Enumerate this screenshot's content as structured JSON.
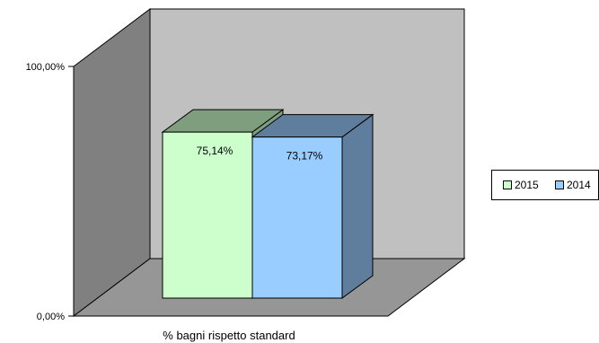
{
  "chart_data": {
    "type": "bar",
    "categories": [
      "% bagni rispetto standard"
    ],
    "series": [
      {
        "name": "2015",
        "values": [
          75.14
        ],
        "label": "75,14%",
        "color": "#ccffcc"
      },
      {
        "name": "2014",
        "values": [
          73.17
        ],
        "label": "73,17%",
        "color": "#99ccff"
      }
    ],
    "xlabel": "% bagni rispetto standard",
    "ylim": [
      0,
      100
    ],
    "yticks": [
      "0,00%",
      "100,00%"
    ],
    "style": "3d-clustered-column",
    "colors": {
      "wall_back": "#c0c0c0",
      "wall_side": "#808080",
      "floor": "#969696"
    },
    "legend": {
      "position": "right",
      "items": [
        "2015",
        "2014"
      ]
    }
  }
}
